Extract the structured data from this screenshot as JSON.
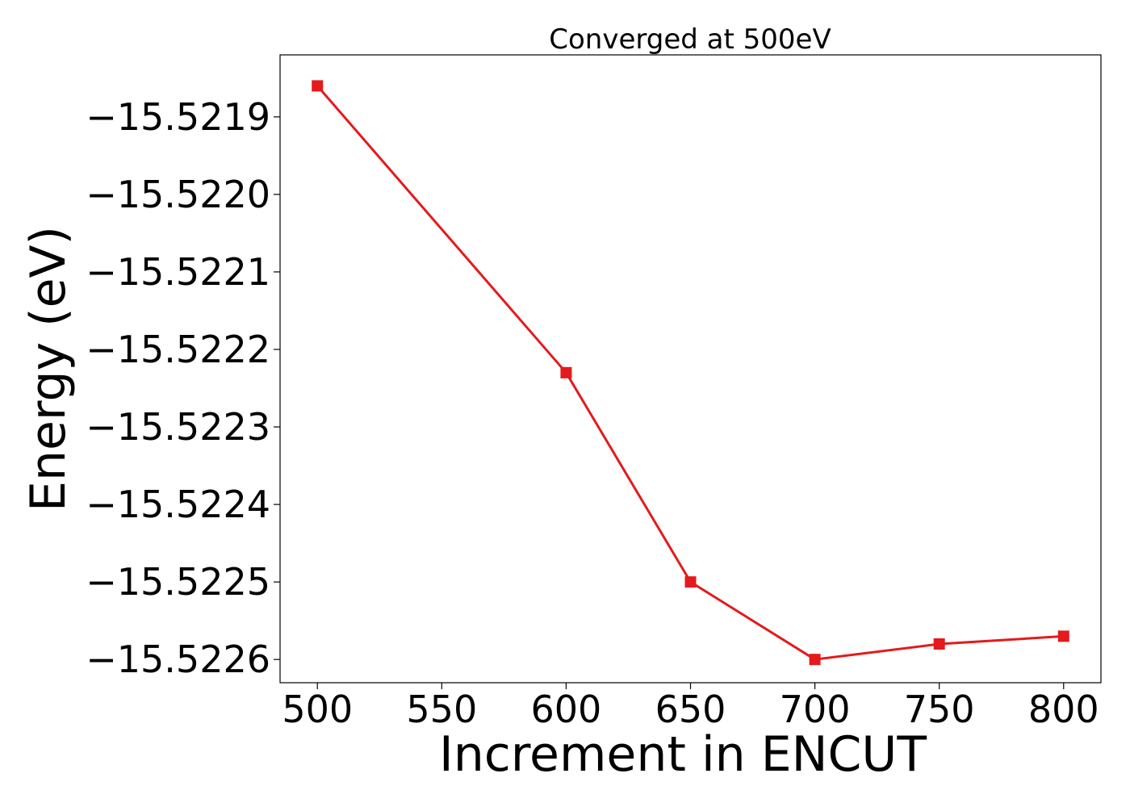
{
  "chart_data": {
    "type": "line",
    "title": "Converged at 500eV",
    "xlabel": "Increment in ENCUT",
    "ylabel": "Energy (eV)",
    "x": [
      500,
      600,
      650,
      700,
      750,
      800
    ],
    "series": [
      {
        "values": [
          -15.52186,
          -15.52223,
          -15.5225,
          -15.5226,
          -15.52258,
          -15.52257
        ]
      }
    ],
    "xlim": [
      485,
      815
    ],
    "ylim": [
      -15.52263,
      -15.52182
    ],
    "xticks": [
      500,
      550,
      600,
      650,
      700,
      750,
      800
    ],
    "xtick_labels": [
      "500",
      "550",
      "600",
      "650",
      "700",
      "750",
      "800"
    ],
    "yticks": [
      -15.5219,
      -15.522,
      -15.5221,
      -15.5222,
      -15.5223,
      -15.5224,
      -15.5225,
      -15.5226
    ],
    "ytick_labels": [
      "−15.5219",
      "−15.5220",
      "−15.5221",
      "−15.5222",
      "−15.5223",
      "−15.5224",
      "−15.5225",
      "−15.5226"
    ],
    "grid": false,
    "marker": "square",
    "color": "#e41a1c"
  }
}
